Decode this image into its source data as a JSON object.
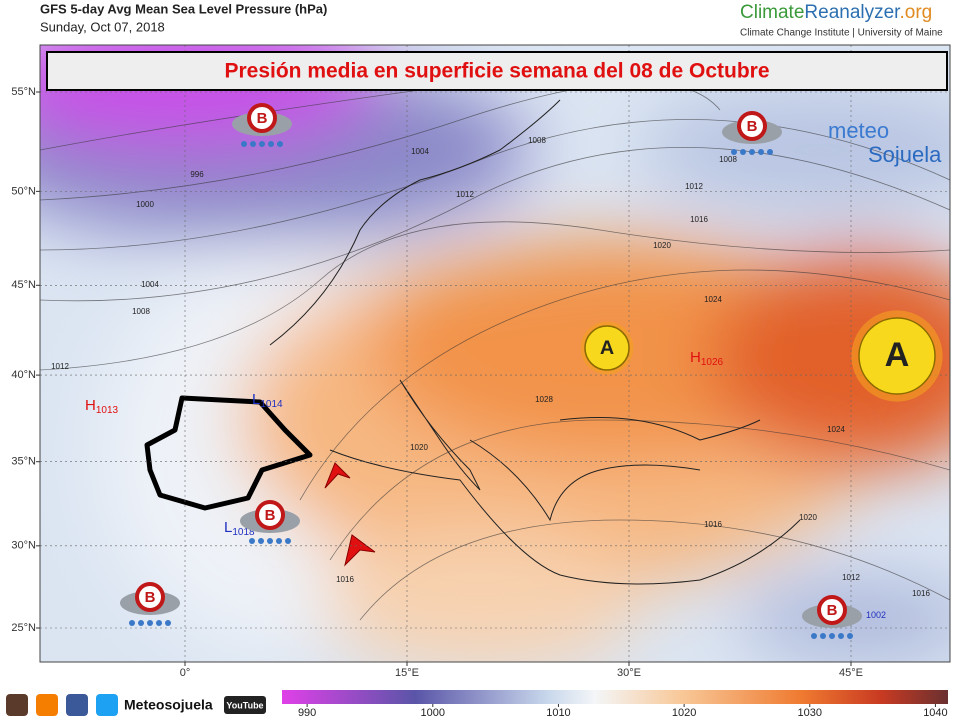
{
  "header": {
    "title": "GFS 5-day Avg Mean Sea Level Pressure (hPa)",
    "date": "Sunday, Oct 07, 2018",
    "brand": [
      "Climate",
      "Reanalyzer",
      ".org"
    ],
    "institute": "Climate Change Institute | University of Maine"
  },
  "banner": "Presión media en superficie semana del 08 de Octubre",
  "logo": [
    "meteo",
    "Sojuela"
  ],
  "map": {
    "lat_ticks": [
      {
        "value": 55,
        "label": "55°N"
      },
      {
        "value": 50,
        "label": "50°N"
      },
      {
        "value": 45,
        "label": "45°N"
      },
      {
        "value": 40,
        "label": "40°N"
      },
      {
        "value": 35,
        "label": "35°N"
      },
      {
        "value": 30,
        "label": "30°N"
      },
      {
        "value": 25,
        "label": "25°N"
      }
    ],
    "lon_ticks": [
      {
        "value": 0,
        "label": "0°"
      },
      {
        "value": 15,
        "label": "15°E"
      },
      {
        "value": 30,
        "label": "30°E"
      },
      {
        "value": 45,
        "label": "45°E"
      }
    ],
    "storm_symbol": "B",
    "anticyclone_symbol": "A",
    "pressure_centers": [
      {
        "letter": "H",
        "value": 1013
      },
      {
        "letter": "L",
        "value": 1014
      },
      {
        "letter": "L",
        "value": 1018
      },
      {
        "letter": "H",
        "value": 1026
      },
      {
        "value": 1002
      }
    ],
    "isobar_labels": [
      996,
      1000,
      1004,
      1008,
      1012,
      1004,
      1008,
      1008,
      1012,
      1012,
      1016,
      1020,
      1024,
      1024,
      1020,
      1016,
      1016,
      1012,
      1020,
      1016,
      1028
    ]
  },
  "colorbar": {
    "range": [
      988,
      1041
    ],
    "ticks": [
      990,
      1000,
      1010,
      1020,
      1030,
      1040
    ]
  },
  "footer": {
    "handle": "Meteosojuela",
    "youtube": "YouTube"
  }
}
